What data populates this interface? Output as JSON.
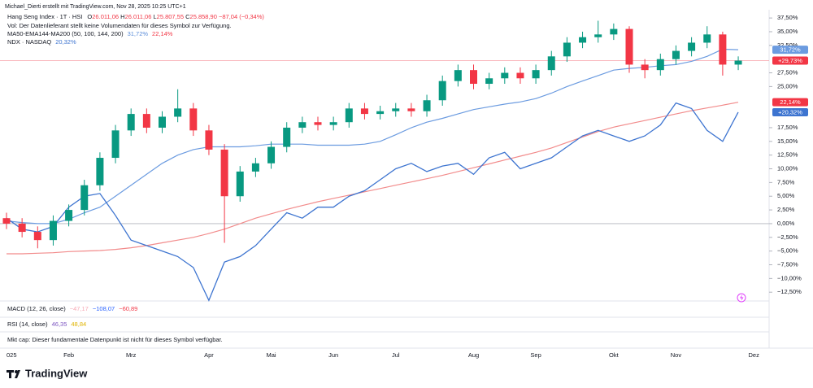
{
  "header": {
    "attribution": "Michael_Dierti erstellt mit TradingView.com, Nov 28, 2025 10:25 UTC+1",
    "symbol": "Hang Seng Index · 1T · HSI",
    "ohlc": [
      {
        "text": "O",
        "color": "#131722"
      },
      {
        "text": "26.011,06",
        "color": "#f23645"
      },
      {
        "text": " H",
        "color": "#131722"
      },
      {
        "text": "26.011,06",
        "color": "#f23645"
      },
      {
        "text": " L",
        "color": "#131722"
      },
      {
        "text": "25.807,55",
        "color": "#f23645"
      },
      {
        "text": " C",
        "color": "#131722"
      },
      {
        "text": "25.858,90",
        "color": "#f23645"
      },
      {
        "text": " −87,04 (−0,34%)",
        "color": "#f23645"
      }
    ],
    "vol": "Vol: Der Datenlieferant stellt keine Volumendaten für dieses Symbol zur Verfügung.",
    "ma": {
      "text": "MA50-EMA144-MA200 (50, 100, 144, 200)",
      "parts": [
        {
          "text": "31,72%",
          "color": "#5b8dd9"
        },
        {
          "text": "22,14%",
          "color": "#f23645"
        }
      ]
    },
    "ndx": {
      "text": "NDX · NASDAQ",
      "parts": [
        {
          "text": "20,32%",
          "color": "#3d74d0"
        }
      ]
    }
  },
  "panes": [
    {
      "text": "MACD (12, 26, close)",
      "parts": [
        {
          "text": "−47,17",
          "color": "#f7a9b4"
        },
        {
          "text": "−108,07",
          "color": "#2962ff"
        },
        {
          "text": "−60,89",
          "color": "#f23645"
        }
      ]
    },
    {
      "text": "RSI (14, close)",
      "parts": [
        {
          "text": "46,35",
          "color": "#7e57c2"
        },
        {
          "text": "48,84",
          "color": "#e0b400"
        }
      ]
    },
    {
      "text": "Mkt cap: Dieser fundamentale Datenpunkt ist nicht für dieses Symbol verfügbar.",
      "parts": []
    }
  ],
  "logo": "TradingView",
  "chart_data": {
    "type": "candlestick",
    "categories": [
      "025",
      null,
      null,
      null,
      "Feb",
      null,
      null,
      null,
      "Mrz",
      null,
      null,
      null,
      null,
      "Apr",
      null,
      null,
      null,
      "Mai",
      null,
      null,
      null,
      "Jun",
      null,
      null,
      null,
      "Jul",
      null,
      null,
      null,
      null,
      "Aug",
      null,
      null,
      null,
      "Sep",
      null,
      null,
      null,
      null,
      "Okt",
      null,
      null,
      null,
      "Nov",
      null,
      null,
      null,
      null,
      "Dez"
    ],
    "open": [
      1,
      0,
      -1.5,
      -3,
      0.5,
      2.5,
      7,
      12,
      17,
      20,
      17.5,
      19.5,
      21,
      17,
      13.5,
      5,
      9.5,
      11,
      14,
      17.5,
      18.5,
      18,
      18.5,
      21,
      20,
      20.5,
      21,
      20.5,
      22.5,
      26,
      28,
      25.5,
      26.5,
      27.5,
      26.5,
      28,
      30.5,
      33,
      34,
      34.5,
      35.5,
      29,
      28,
      30,
      31.5,
      33,
      34.5,
      29,
      null
    ],
    "high": [
      2,
      1,
      -0.5,
      1.5,
      3.5,
      8,
      13,
      18,
      21,
      21,
      20.5,
      24.5,
      22,
      18,
      14.5,
      10.5,
      12,
      15,
      18.5,
      19.5,
      19.5,
      19.5,
      22,
      22,
      21.5,
      22,
      22,
      23.5,
      27,
      29,
      29,
      27.5,
      28.5,
      28.5,
      29,
      31.5,
      34,
      35,
      37,
      36.5,
      36,
      30,
      31,
      32.5,
      34,
      36,
      35,
      30.5,
      null
    ],
    "low": [
      -1,
      -2.5,
      -4.5,
      -4,
      -0.5,
      1.5,
      6,
      11,
      16,
      16.5,
      16.5,
      18.5,
      16,
      12.5,
      -3.5,
      4,
      8.5,
      10,
      13,
      16.5,
      17,
      17,
      17.5,
      19,
      19,
      19.5,
      19.5,
      19.5,
      21.5,
      25,
      24.5,
      24.5,
      25.5,
      25.5,
      25.5,
      27,
      29.5,
      32,
      33,
      33.5,
      27.5,
      26.5,
      27,
      29,
      30.5,
      32,
      27,
      28,
      null
    ],
    "close": [
      0,
      -1.5,
      -3,
      0.5,
      2.5,
      7,
      12,
      17,
      20,
      17.5,
      19.5,
      21,
      17,
      13.5,
      5,
      9.5,
      11,
      14,
      17.5,
      18.5,
      18,
      18.5,
      21,
      20,
      20.5,
      21,
      20.5,
      22.5,
      26,
      28,
      25.5,
      26.5,
      27.5,
      26.5,
      28,
      30.5,
      33,
      34,
      34.5,
      35.5,
      29,
      28,
      30,
      31.5,
      33,
      34.5,
      29,
      29.73,
      null
    ],
    "last_label": "+29,73%",
    "color_up": "#089981",
    "color_down": "#f23645",
    "series": [
      {
        "color": "#6b9be0",
        "last_label": "31,72%",
        "values": [
          0.5,
          0.2,
          0,
          0,
          0.8,
          2,
          3,
          5,
          7,
          9,
          11,
          12.5,
          13.5,
          14,
          14,
          14,
          14.2,
          14.5,
          14.5,
          14.5,
          14.3,
          14.3,
          14.3,
          14.5,
          15,
          16.2,
          17.5,
          18.5,
          19.2,
          20,
          20.8,
          21.3,
          21.8,
          22.2,
          22.8,
          23.8,
          25,
          26,
          27,
          28,
          28.3,
          28.5,
          28.8,
          29,
          29.6,
          30.5,
          31.8,
          31.72,
          null
        ]
      },
      {
        "color": "#f28b8b",
        "last_label": "22,14%",
        "label_color": "#f23645",
        "values": [
          -5.5,
          -5.5,
          -5.4,
          -5.3,
          -5.1,
          -5,
          -4.9,
          -4.7,
          -4.4,
          -4,
          -3.5,
          -3,
          -2.5,
          -1.8,
          -1,
          0,
          1,
          1.8,
          2.6,
          3.3,
          4,
          4.6,
          5.2,
          5.8,
          6.4,
          7,
          7.6,
          8.2,
          8.8,
          9.5,
          10.2,
          10.9,
          11.6,
          12.3,
          13,
          13.8,
          14.8,
          15.8,
          16.8,
          17.6,
          18.2,
          18.8,
          19.4,
          20,
          20.6,
          21.1,
          21.6,
          22.14,
          null
        ]
      },
      {
        "color": "#3d74d0",
        "last_label": "+20,32%",
        "values": [
          1,
          -1,
          -1.5,
          -0.5,
          3,
          5,
          5.5,
          1.5,
          -3,
          -4,
          -5,
          -6,
          -8,
          -14,
          -7,
          -6,
          -4,
          -1,
          2,
          1,
          3,
          3,
          5,
          6,
          8,
          10,
          11,
          9.5,
          10.5,
          11,
          9,
          12,
          13,
          10,
          11,
          12,
          14,
          16,
          17,
          16,
          15,
          16,
          18,
          22,
          21,
          17,
          15,
          20.32,
          null
        ]
      }
    ],
    "ylim": [
      -14.1,
      39
    ],
    "yticks": [
      {
        "value": 37.5,
        "label": "37,50%"
      },
      {
        "value": 35,
        "label": "35,00%"
      },
      {
        "value": 32.5,
        "label": "32,50%"
      },
      {
        "value": 27.5,
        "label": "27,50%"
      },
      {
        "value": 25,
        "label": "25,00%"
      },
      {
        "value": 17.5,
        "label": "17,50%"
      },
      {
        "value": 15,
        "label": "15,00%"
      },
      {
        "value": 12.5,
        "label": "12,50%"
      },
      {
        "value": 10,
        "label": "10,00%"
      },
      {
        "value": 7.5,
        "label": "7,50%"
      },
      {
        "value": 5,
        "label": "5,00%"
      },
      {
        "value": 2.5,
        "label": "2,50%"
      },
      {
        "value": 0,
        "label": "0,00%"
      },
      {
        "value": -2.5,
        "label": "−2,50%"
      },
      {
        "value": -5,
        "label": "−5,00%"
      },
      {
        "value": -7.5,
        "label": "−7,50%"
      },
      {
        "value": -10,
        "label": "−10,00%"
      },
      {
        "value": -12.5,
        "label": "−12,50%"
      }
    ],
    "grid": false
  }
}
